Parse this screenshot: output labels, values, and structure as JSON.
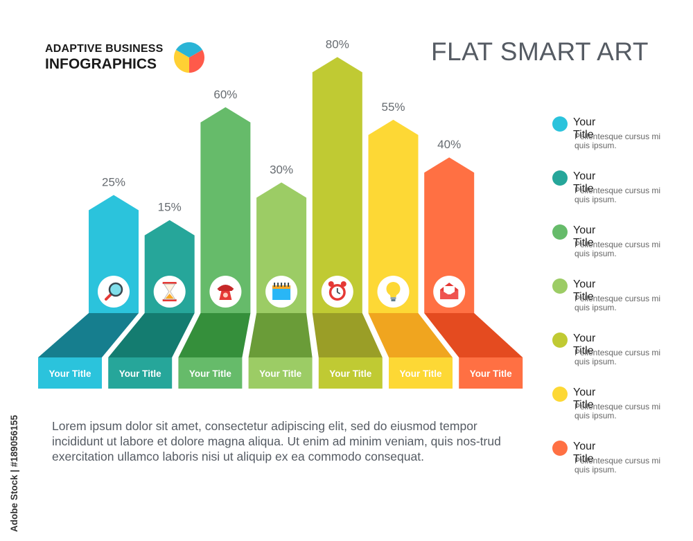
{
  "header": {
    "logo_line1": "ADAPTIVE BUSINESS",
    "logo_line2": "INFOGRAPHICS",
    "title": "FLAT SMART ART",
    "logo_colors": [
      "#2ab4d6",
      "#ff5a4a",
      "#ffd034"
    ]
  },
  "chart_data": {
    "type": "bar",
    "categories": [
      "Your Title",
      "Your Title",
      "Your Title",
      "Your Title",
      "Your Title",
      "Your Title",
      "Your Title"
    ],
    "values": [
      25,
      15,
      60,
      30,
      80,
      55,
      40
    ],
    "data_labels": [
      "25%",
      "15%",
      "60%",
      "30%",
      "80%",
      "55%",
      "40%"
    ],
    "icons": [
      "magnifier-icon",
      "hourglass-icon",
      "phone-icon",
      "calendar-icon",
      "alarm-clock-icon",
      "lightbulb-icon",
      "envelope-icon"
    ],
    "colors": [
      "#2bc3dc",
      "#26a69a",
      "#66bb6a",
      "#9ccc65",
      "#c0ca33",
      "#fdd835",
      "#ff7043"
    ],
    "dark_colors": [
      "#167e8e",
      "#147c70",
      "#358f3b",
      "#6a9c38",
      "#9a9e27",
      "#f0a51f",
      "#e44b20"
    ],
    "label_colors": [
      "#2bc3dc",
      "#26a69a",
      "#66bb6a",
      "#9ccc65",
      "#c0ca33",
      "#fdd835",
      "#ff7043"
    ],
    "title": "",
    "xlabel": "",
    "ylabel": ""
  },
  "body_text": "Lorem ipsum dolor sit amet, consectetur adipiscing elit, sed do eiusmod tempor incididunt ut labore et dolore magna aliqua. Ut enim ad minim veniam, quis nos-trud exercitation ullamco laboris nisi ut aliquip ex ea commodo consequat.",
  "legend": [
    {
      "title": "Your Title",
      "desc": "Pellentesque cursus mi quis ipsum.",
      "color": "#2bc3dc"
    },
    {
      "title": "Your Title",
      "desc": "Pellentesque cursus mi quis ipsum.",
      "color": "#26a69a"
    },
    {
      "title": "Your Title",
      "desc": "Pellentesque cursus mi quis ipsum.",
      "color": "#66bb6a"
    },
    {
      "title": "Your Title",
      "desc": "Pellentesque cursus mi quis ipsum.",
      "color": "#9ccc65"
    },
    {
      "title": "Your Title",
      "desc": "Pellentesque cursus mi quis ipsum.",
      "color": "#c0ca33"
    },
    {
      "title": "Your Title",
      "desc": "Pellentesque cursus mi quis ipsum.",
      "color": "#fdd835"
    },
    {
      "title": "Your Title",
      "desc": "Pellentesque cursus mi quis ipsum.",
      "color": "#ff7043"
    }
  ],
  "watermark": "Adobe Stock | #189056155"
}
